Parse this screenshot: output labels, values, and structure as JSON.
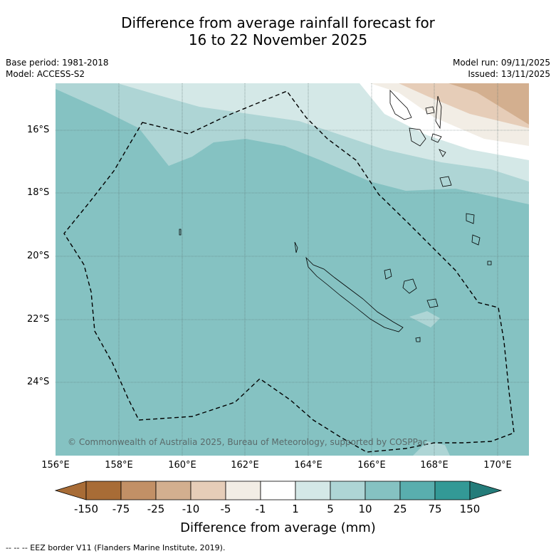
{
  "title": {
    "line1": "Difference from average rainfall forecast for",
    "line2": "16 to 22 November 2025"
  },
  "meta": {
    "base_period": "Base period: 1981-2018",
    "model": "Model: ACCESS-S2",
    "model_run": "Model run: 09/11/2025",
    "issued": "Issued: 13/11/2025"
  },
  "map": {
    "lat_labels": [
      "16°S",
      "18°S",
      "20°S",
      "22°S",
      "24°S"
    ],
    "lon_labels": [
      "156°E",
      "158°E",
      "160°E",
      "162°E",
      "164°E",
      "166°E",
      "168°E",
      "170°E"
    ],
    "copyright": "© Commonwealth of Australia 2025, Bureau of Meteorology, supported by COSPPac"
  },
  "colorbar": {
    "title": "Difference from average (mm)",
    "ticks": [
      "-150",
      "-75",
      "-25",
      "-10",
      "-5",
      "-1",
      "1",
      "5",
      "10",
      "25",
      "75",
      "150"
    ],
    "colors": [
      "#a86c36",
      "#c29066",
      "#d3af8f",
      "#e6cdb8",
      "#f2ede5",
      "#ffffff",
      "#d4e8e7",
      "#aed5d5",
      "#85c2c2",
      "#59aeae",
      "#339996",
      "#247c7a"
    ]
  },
  "footer": "--  --  -- EEZ border V11 (Flanders Marine Institute, 2019)."
}
